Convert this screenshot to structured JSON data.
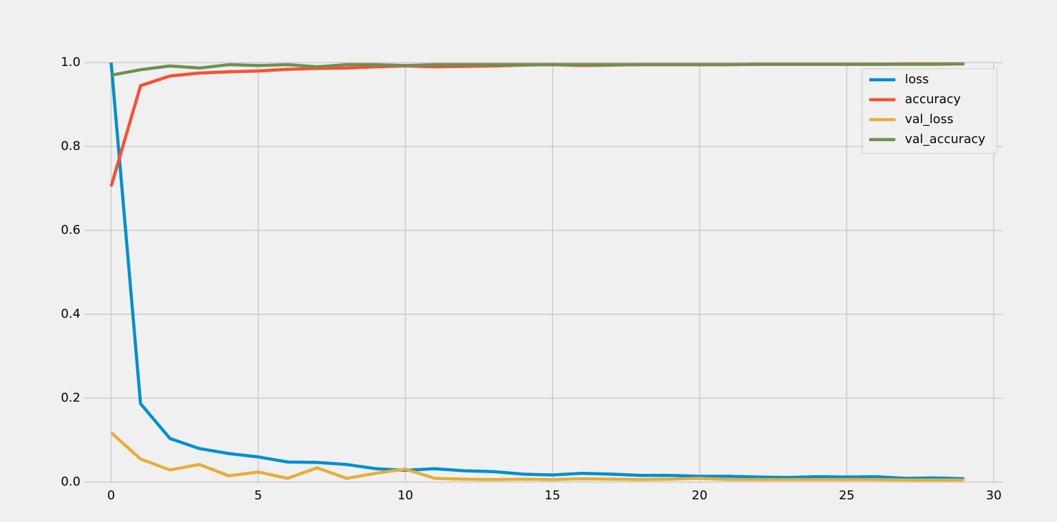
{
  "chart_data": {
    "type": "line",
    "title": "",
    "xlabel": "",
    "ylabel": "",
    "xlim": [
      -0.9,
      30.3
    ],
    "ylim": [
      0.0,
      1.0
    ],
    "xticks": [
      0,
      5,
      10,
      15,
      20,
      25,
      30
    ],
    "yticks": [
      0.0,
      0.2,
      0.4,
      0.6,
      0.8,
      1.0
    ],
    "xtick_labels": [
      "0",
      "5",
      "10",
      "15",
      "20",
      "25",
      "30"
    ],
    "ytick_labels": [
      "0.0",
      "0.2",
      "0.4",
      "0.6",
      "0.8",
      "1.0"
    ],
    "grid": true,
    "legend_position": "top-right",
    "background_color": "#f0f0f0",
    "grid_color": "#cbcbcb",
    "x": [
      0,
      1,
      2,
      3,
      4,
      5,
      6,
      7,
      8,
      9,
      10,
      11,
      12,
      13,
      14,
      15,
      16,
      17,
      18,
      19,
      20,
      21,
      22,
      23,
      24,
      25,
      26,
      27,
      28,
      29
    ],
    "series": [
      {
        "name": "loss",
        "color": "#008fd5",
        "values": [
          1.0,
          0.187,
          0.104,
          0.08,
          0.068,
          0.06,
          0.048,
          0.047,
          0.042,
          0.032,
          0.028,
          0.032,
          0.027,
          0.025,
          0.019,
          0.017,
          0.021,
          0.019,
          0.016,
          0.016,
          0.014,
          0.014,
          0.012,
          0.011,
          0.013,
          0.012,
          0.013,
          0.009,
          0.01,
          0.008
        ]
      },
      {
        "name": "accuracy",
        "color": "#fc4f30",
        "values": [
          0.705,
          0.945,
          0.968,
          0.975,
          0.978,
          0.98,
          0.984,
          0.986,
          0.987,
          0.99,
          0.992,
          0.99,
          0.991,
          0.992,
          0.994,
          0.995,
          0.993,
          0.994,
          0.995,
          0.995,
          0.995,
          0.995,
          0.996,
          0.996,
          0.996,
          0.996,
          0.996,
          0.997,
          0.997,
          0.997
        ]
      },
      {
        "name": "val_loss",
        "color": "#e5ae38",
        "values": [
          0.118,
          0.055,
          0.029,
          0.042,
          0.015,
          0.024,
          0.009,
          0.034,
          0.009,
          0.021,
          0.031,
          0.009,
          0.007,
          0.006,
          0.007,
          0.006,
          0.008,
          0.007,
          0.006,
          0.007,
          0.009,
          0.006,
          0.006,
          0.006,
          0.006,
          0.006,
          0.006,
          0.005,
          0.005,
          0.005
        ]
      },
      {
        "name": "val_accuracy",
        "color": "#6d904f",
        "values": [
          0.97,
          0.983,
          0.992,
          0.987,
          0.995,
          0.993,
          0.995,
          0.99,
          0.995,
          0.995,
          0.993,
          0.995,
          0.995,
          0.995,
          0.995,
          0.995,
          0.995,
          0.995,
          0.995,
          0.995,
          0.995,
          0.995,
          0.996,
          0.996,
          0.996,
          0.996,
          0.996,
          0.996,
          0.996,
          0.997
        ]
      }
    ]
  }
}
